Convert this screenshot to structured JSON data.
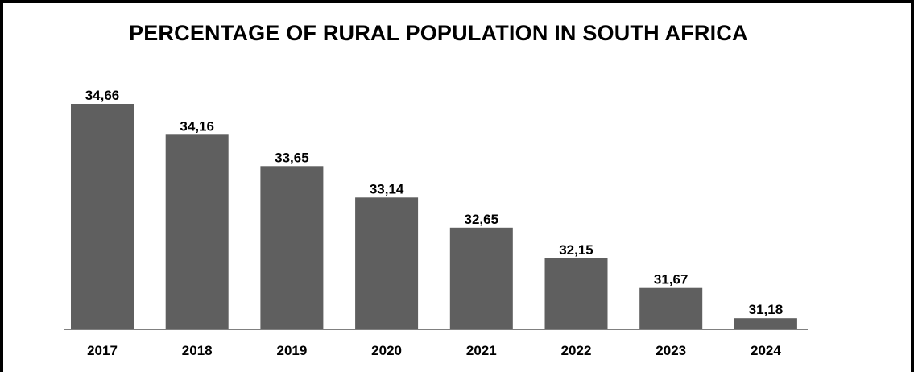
{
  "chart_data": {
    "type": "bar",
    "title": "PERCENTAGE OF RURAL POPULATION IN SOUTH AFRICA",
    "xlabel": "",
    "ylabel": "",
    "categories": [
      "2017",
      "2018",
      "2019",
      "2020",
      "2021",
      "2022",
      "2023",
      "2024"
    ],
    "values": [
      34.66,
      34.16,
      33.65,
      33.14,
      32.65,
      32.15,
      31.67,
      31.18
    ],
    "value_labels": [
      "34,66",
      "34,16",
      "33,65",
      "33,14",
      "32,65",
      "32,15",
      "31,67",
      "31,18"
    ],
    "ylim": [
      31.0,
      34.66
    ],
    "grid": false,
    "legend": "none",
    "bar_color": "#5f5f5f"
  }
}
